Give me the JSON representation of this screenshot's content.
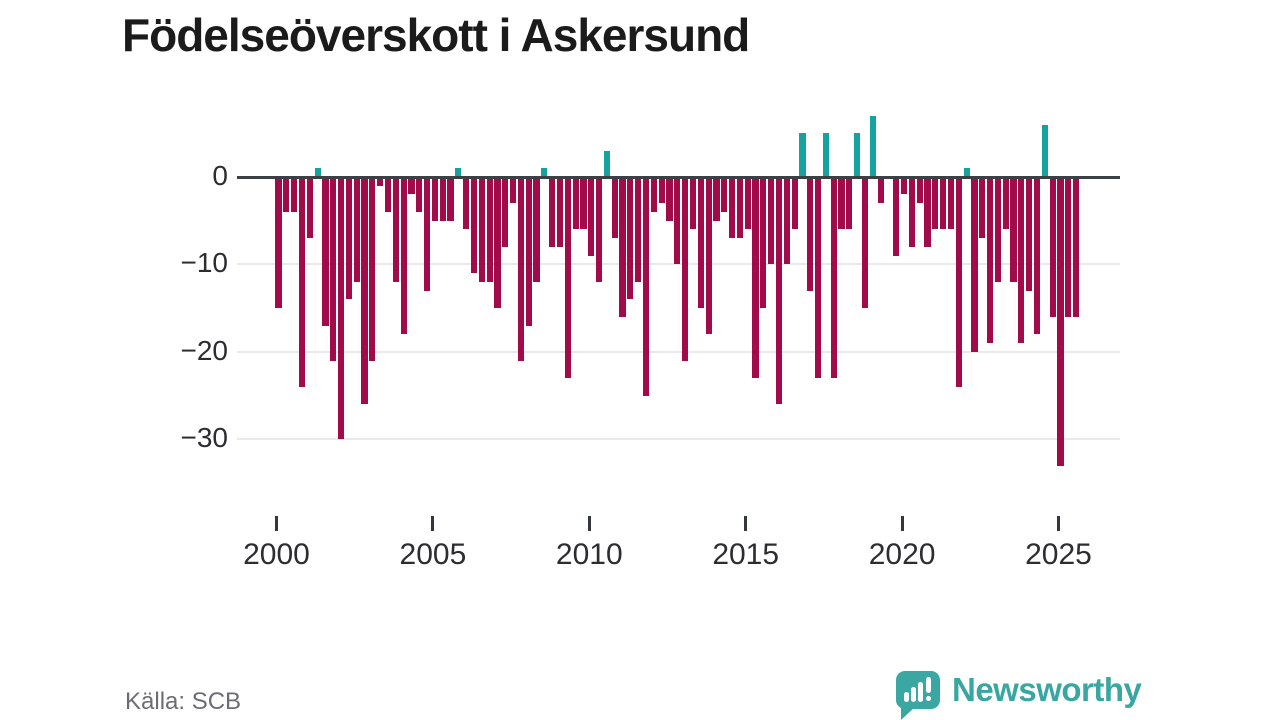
{
  "title": "Födelseöverskott i Askersund",
  "source": "Källa: SCB",
  "brand": {
    "name": "Newsworthy"
  },
  "chart_data": {
    "type": "bar",
    "title": "Födelseöverskott i Askersund",
    "ylabel": "",
    "xlabel": "",
    "frequency": "quarterly",
    "start_period": "2000Q1",
    "end_period": "2025Q3",
    "x_tick_labels": [
      "2000",
      "2005",
      "2010",
      "2015",
      "2020",
      "2025"
    ],
    "y_tick_labels": [
      "0",
      "−10",
      "−20",
      "−30"
    ],
    "y_ticks": [
      0,
      -10,
      -20,
      -30
    ],
    "ylim": [
      -35,
      8
    ],
    "grid": "horizontal",
    "colors": {
      "negative": "#a20b4a",
      "positive": "#14a3a1",
      "axis": "#3b4045",
      "gridline": "#e9e9ea"
    },
    "series": [
      {
        "name": "Födelseöverskott",
        "values": [
          -15,
          -4,
          -4,
          -24,
          -7,
          1,
          -17,
          -21,
          -30,
          -14,
          -12,
          -26,
          -21,
          -1,
          -4,
          -12,
          -18,
          -2,
          -4,
          -13,
          -5,
          -5,
          -5,
          1,
          -6,
          -11,
          -12,
          -12,
          -15,
          -8,
          -3,
          -21,
          -17,
          -12,
          1,
          -8,
          -8,
          -23,
          -6,
          -6,
          -9,
          -12,
          3,
          -7,
          -16,
          -14,
          -12,
          -25,
          -4,
          -3,
          -5,
          -10,
          -21,
          -6,
          -15,
          -18,
          -5,
          -4,
          -7,
          -7,
          -6,
          -23,
          -15,
          -10,
          -26,
          -10,
          -6,
          5,
          -13,
          -23,
          5,
          -23,
          -6,
          -6,
          5,
          -15,
          7,
          -3,
          0,
          -9,
          -2,
          -8,
          -3,
          -8,
          -6,
          -6,
          -6,
          -24,
          1,
          -20,
          -7,
          -19,
          -12,
          -6,
          -12,
          -19,
          -13,
          -18,
          6,
          -16,
          -33,
          -16,
          -16
        ]
      }
    ]
  }
}
